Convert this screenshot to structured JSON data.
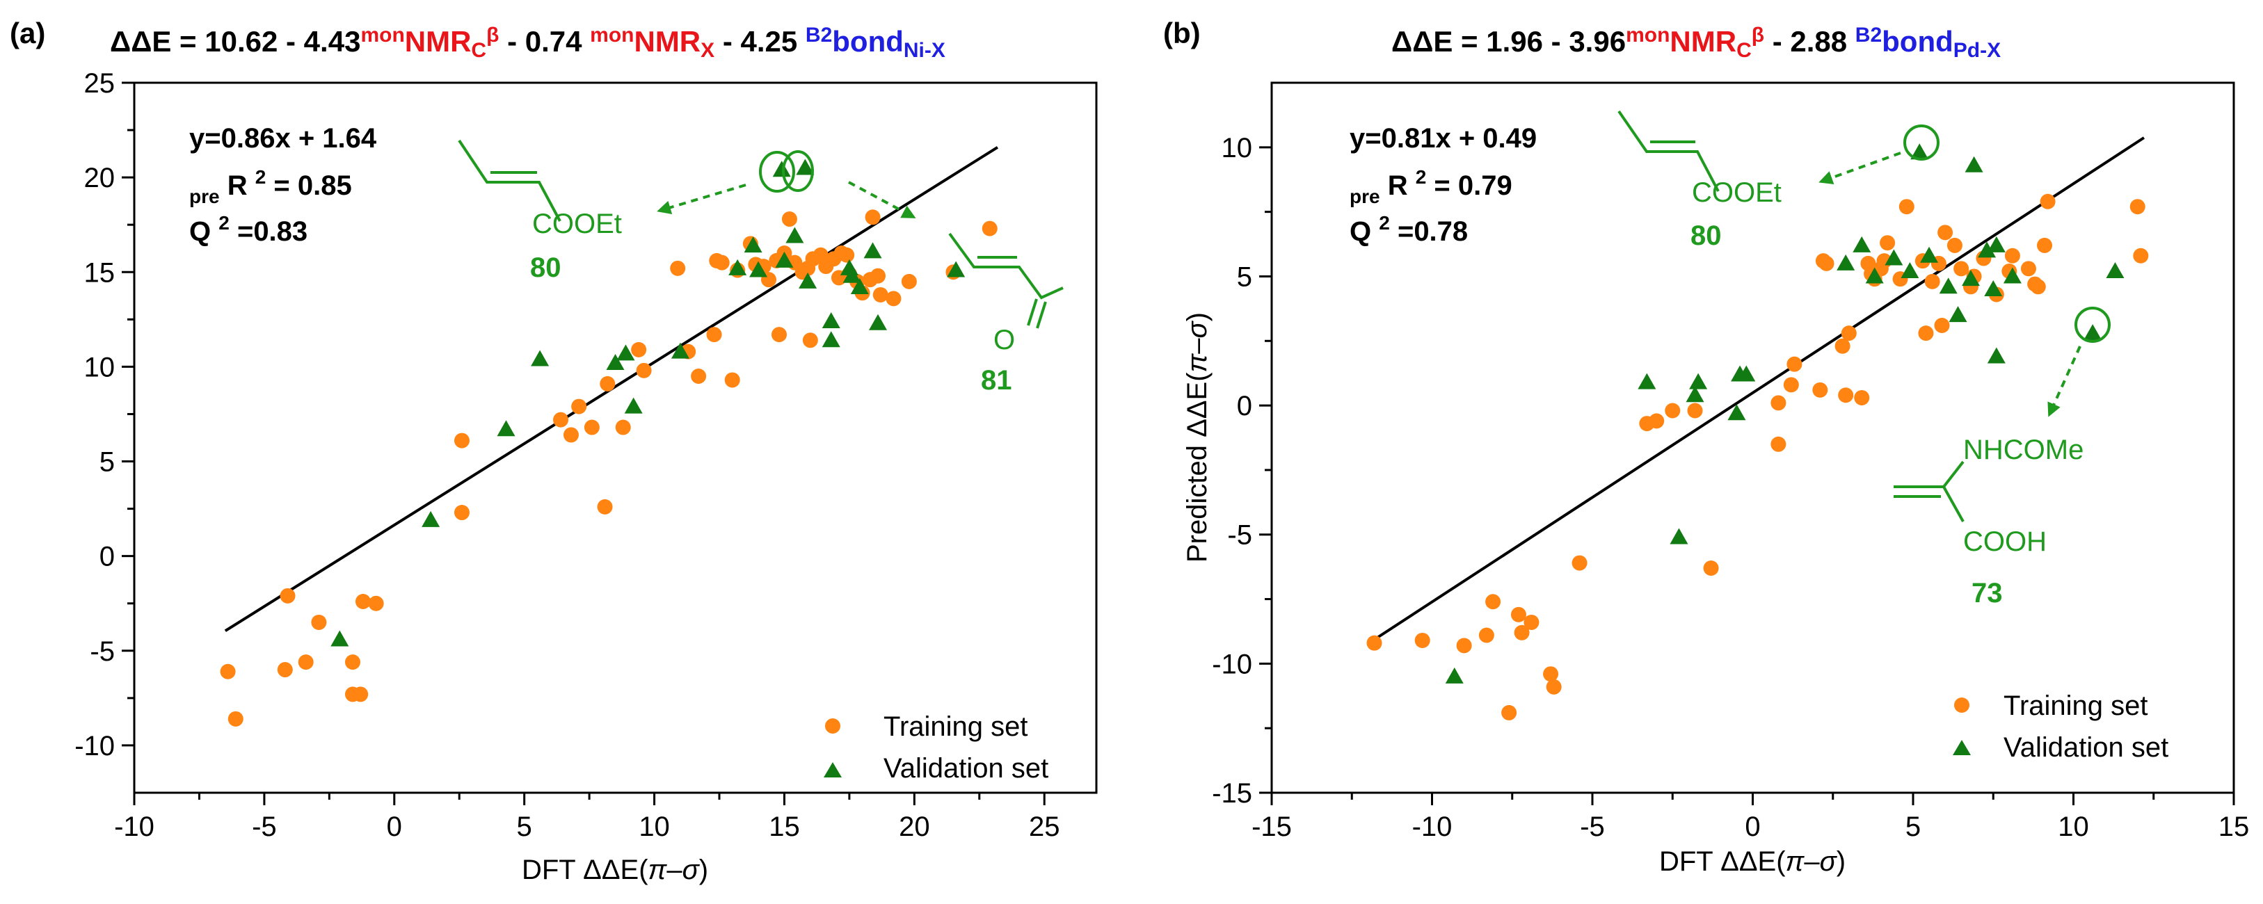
{
  "figure": {
    "panels": [
      {
        "id": "a",
        "label": "(a)",
        "equation": [
          {
            "t": "ΔΔE = 10.62 - 4.43",
            "c": "#000000",
            "k": "n"
          },
          {
            "t": "mon",
            "c": "#e8161b",
            "k": "sup"
          },
          {
            "t": "NMR",
            "c": "#e8161b",
            "k": "n"
          },
          {
            "t": "C",
            "c": "#e8161b",
            "k": "sub"
          },
          {
            "t": "β",
            "c": "#e8161b",
            "k": "sup"
          },
          {
            "t": " - 0.74 ",
            "c": "#000000",
            "k": "n"
          },
          {
            "t": "mon",
            "c": "#e8161b",
            "k": "sup"
          },
          {
            "t": "NMR",
            "c": "#e8161b",
            "k": "n"
          },
          {
            "t": "X",
            "c": "#e8161b",
            "k": "sub"
          },
          {
            "t": " - 4.25 ",
            "c": "#000000",
            "k": "n"
          },
          {
            "t": "B2",
            "c": "#1f1fe0",
            "k": "sup"
          },
          {
            "t": "bond",
            "c": "#1f1fe0",
            "k": "n"
          },
          {
            "t": "Ni-X",
            "c": "#1f1fe0",
            "k": "sub"
          }
        ],
        "fit_line1": "y=0.86x + 1.64",
        "fit_r2_sub": "pre",
        "fit_r2_main": "R",
        "fit_r2_sup": "2",
        "fit_r2_val": " = 0.85",
        "fit_q2_main": "Q",
        "fit_q2_sup": "2",
        "fit_q2_val": "=0.83",
        "annotations": {
          "mol1_text": "COOEt",
          "mol1_num": "80",
          "mol2_o": "O",
          "mol2_num": "81"
        },
        "legend": {
          "training": "Training set",
          "validation": "Validation set"
        }
      },
      {
        "id": "b",
        "label": "(b)",
        "equation": [
          {
            "t": "ΔΔE = 1.96 - 3.96",
            "c": "#000000",
            "k": "n"
          },
          {
            "t": "mon",
            "c": "#e8161b",
            "k": "sup"
          },
          {
            "t": "NMR",
            "c": "#e8161b",
            "k": "n"
          },
          {
            "t": "C",
            "c": "#e8161b",
            "k": "sub"
          },
          {
            "t": "β",
            "c": "#e8161b",
            "k": "sup"
          },
          {
            "t": " - 2.88 ",
            "c": "#000000",
            "k": "n"
          },
          {
            "t": "B2",
            "c": "#1f1fe0",
            "k": "sup"
          },
          {
            "t": "bond",
            "c": "#1f1fe0",
            "k": "n"
          },
          {
            "t": "Pd-X",
            "c": "#1f1fe0",
            "k": "sub"
          }
        ],
        "fit_line1": "y=0.81x + 0.49",
        "fit_r2_sub": "pre",
        "fit_r2_main": "R",
        "fit_r2_sup": "2",
        "fit_r2_val": " = 0.79",
        "fit_q2_main": "Q",
        "fit_q2_sup": "2",
        "fit_q2_val": "=0.78",
        "annotations": {
          "mol1_text": "COOEt",
          "mol1_num": "80",
          "mol3_text1": "NHCOMe",
          "mol3_text2": "COOH",
          "mol3_num": "73"
        },
        "legend": {
          "training": "Training set",
          "validation": "Validation set"
        }
      }
    ]
  },
  "chart_data": [
    {
      "type": "scatter",
      "panel": "a",
      "title": "ΔΔE = 10.62 - 4.43 monNMRCβ - 0.74 monNMRX - 4.25 B2bondNi-X",
      "xlabel_prefix": "DFT ΔΔE(",
      "xlabel_pi": "π",
      "xlabel_dash": "–",
      "xlabel_sigma": "σ",
      "xlabel_suffix": ")",
      "ylabel": "",
      "xlim": [
        -10,
        27
      ],
      "ylim": [
        -12.5,
        25
      ],
      "xticks": [
        -10,
        -5,
        0,
        5,
        10,
        15,
        20,
        25
      ],
      "yticks": [
        -10,
        -5,
        0,
        5,
        10,
        15,
        20,
        25
      ],
      "xtick_labels": [
        "-10",
        "-5",
        "0",
        "5",
        "10",
        "15",
        "20",
        "25"
      ],
      "ytick_labels": [
        "-10",
        "-5",
        "0",
        "5",
        "10",
        "15",
        "20",
        "25"
      ],
      "fit_line": {
        "slope": 0.86,
        "intercept": 1.64,
        "x_range": [
          -6.5,
          23.2
        ]
      },
      "series": [
        {
          "name": "Training set",
          "marker": "circle",
          "color": "#ff8412",
          "points": [
            [
              -6.4,
              -6.1
            ],
            [
              -6.1,
              -8.6
            ],
            [
              -4.2,
              -6.0
            ],
            [
              -4.1,
              -2.1
            ],
            [
              -3.4,
              -5.6
            ],
            [
              -2.9,
              -3.5
            ],
            [
              -1.6,
              -5.6
            ],
            [
              -1.6,
              -7.3
            ],
            [
              -1.3,
              -7.3
            ],
            [
              -1.2,
              -2.4
            ],
            [
              -0.7,
              -2.5
            ],
            [
              2.6,
              6.1
            ],
            [
              2.6,
              2.3
            ],
            [
              6.4,
              7.2
            ],
            [
              6.8,
              6.4
            ],
            [
              7.1,
              7.9
            ],
            [
              7.6,
              6.8
            ],
            [
              8.1,
              2.6
            ],
            [
              8.2,
              9.1
            ],
            [
              8.8,
              6.8
            ],
            [
              9.4,
              10.9
            ],
            [
              9.6,
              9.8
            ],
            [
              10.9,
              15.2
            ],
            [
              11.3,
              10.8
            ],
            [
              11.7,
              9.5
            ],
            [
              12.3,
              11.7
            ],
            [
              12.4,
              15.6
            ],
            [
              12.6,
              15.5
            ],
            [
              13.0,
              9.3
            ],
            [
              13.2,
              15.1
            ],
            [
              13.7,
              16.5
            ],
            [
              13.9,
              15.4
            ],
            [
              14.2,
              15.3
            ],
            [
              14.4,
              14.6
            ],
            [
              14.7,
              15.6
            ],
            [
              14.8,
              11.7
            ],
            [
              15.0,
              16.0
            ],
            [
              15.2,
              17.8
            ],
            [
              15.4,
              15.5
            ],
            [
              15.7,
              15.0
            ],
            [
              15.9,
              15.2
            ],
            [
              16.0,
              11.4
            ],
            [
              16.1,
              15.7
            ],
            [
              16.4,
              15.9
            ],
            [
              16.6,
              15.3
            ],
            [
              16.9,
              15.7
            ],
            [
              17.1,
              14.7
            ],
            [
              17.2,
              16.0
            ],
            [
              17.4,
              15.9
            ],
            [
              17.5,
              14.9
            ],
            [
              17.8,
              14.5
            ],
            [
              18.0,
              13.9
            ],
            [
              18.3,
              14.6
            ],
            [
              18.4,
              17.9
            ],
            [
              18.6,
              14.8
            ],
            [
              18.7,
              13.8
            ],
            [
              19.2,
              13.6
            ],
            [
              19.8,
              14.5
            ],
            [
              21.5,
              15.0
            ],
            [
              22.9,
              17.3
            ]
          ]
        },
        {
          "name": "Validation set",
          "marker": "triangle",
          "color": "#127a12",
          "points": [
            [
              -2.1,
              -4.4
            ],
            [
              1.4,
              1.9
            ],
            [
              4.3,
              6.7
            ],
            [
              5.6,
              10.4
            ],
            [
              8.5,
              10.2
            ],
            [
              8.9,
              10.7
            ],
            [
              9.2,
              7.9
            ],
            [
              11.0,
              10.8
            ],
            [
              13.2,
              15.2
            ],
            [
              13.8,
              16.4
            ],
            [
              14.0,
              15.1
            ],
            [
              14.9,
              20.4
            ],
            [
              15.0,
              15.6
            ],
            [
              15.4,
              16.9
            ],
            [
              15.8,
              20.5
            ],
            [
              15.9,
              14.5
            ],
            [
              16.8,
              12.4
            ],
            [
              16.8,
              11.4
            ],
            [
              17.5,
              15.2
            ],
            [
              17.6,
              14.8
            ],
            [
              17.9,
              14.2
            ],
            [
              18.4,
              16.1
            ],
            [
              18.6,
              12.3
            ],
            [
              21.6,
              15.1
            ]
          ]
        }
      ]
    },
    {
      "type": "scatter",
      "panel": "b",
      "title": "ΔΔE = 1.96 - 3.96 monNMRCβ - 2.88 B2bondPd-X",
      "xlabel_prefix": "DFT ΔΔE(",
      "xlabel_pi": "π",
      "xlabel_dash": "–",
      "xlabel_sigma": "σ",
      "xlabel_suffix": ")",
      "ylabel_prefix": "Predicted ΔΔE(",
      "ylabel_pi": "π",
      "ylabel_dash": "–",
      "ylabel_sigma": "σ",
      "ylabel_suffix": ")",
      "xlim": [
        -15,
        15
      ],
      "ylim": [
        -15,
        12.5
      ],
      "xticks": [
        -15,
        -10,
        -5,
        0,
        5,
        10,
        15
      ],
      "yticks": [
        -15,
        -10,
        -5,
        0,
        5,
        10
      ],
      "xtick_labels": [
        "-15",
        "-10",
        "-5",
        "0",
        "5",
        "10",
        "15"
      ],
      "ytick_labels": [
        "-15",
        "-10",
        "-5",
        "0",
        "5",
        "10"
      ],
      "fit_line": {
        "slope": 0.81,
        "intercept": 0.49,
        "x_range": [
          -11.8,
          12.2
        ]
      },
      "series": [
        {
          "name": "Training set",
          "marker": "circle",
          "color": "#ff8412",
          "points": [
            [
              -11.8,
              -9.2
            ],
            [
              -10.3,
              -9.1
            ],
            [
              -9.0,
              -9.3
            ],
            [
              -8.3,
              -8.9
            ],
            [
              -8.1,
              -7.6
            ],
            [
              -7.6,
              -11.9
            ],
            [
              -7.3,
              -8.1
            ],
            [
              -7.2,
              -8.8
            ],
            [
              -6.9,
              -8.4
            ],
            [
              -6.3,
              -10.4
            ],
            [
              -6.2,
              -10.9
            ],
            [
              -5.4,
              -6.1
            ],
            [
              -3.3,
              -0.7
            ],
            [
              -3.0,
              -0.6
            ],
            [
              -2.5,
              -0.2
            ],
            [
              -1.8,
              -0.2
            ],
            [
              -1.3,
              -6.3
            ],
            [
              0.8,
              0.1
            ],
            [
              0.8,
              -1.5
            ],
            [
              1.2,
              0.8
            ],
            [
              1.3,
              1.6
            ],
            [
              2.1,
              0.6
            ],
            [
              2.2,
              5.6
            ],
            [
              2.3,
              5.5
            ],
            [
              2.8,
              2.3
            ],
            [
              2.9,
              0.4
            ],
            [
              3.0,
              2.8
            ],
            [
              3.4,
              0.3
            ],
            [
              3.6,
              5.5
            ],
            [
              3.7,
              5.1
            ],
            [
              3.8,
              4.9
            ],
            [
              4.0,
              5.3
            ],
            [
              4.1,
              5.6
            ],
            [
              4.2,
              6.3
            ],
            [
              4.6,
              4.9
            ],
            [
              4.8,
              7.7
            ],
            [
              5.3,
              5.6
            ],
            [
              5.4,
              2.8
            ],
            [
              5.6,
              4.8
            ],
            [
              5.8,
              5.5
            ],
            [
              5.9,
              3.1
            ],
            [
              6.0,
              6.7
            ],
            [
              6.3,
              6.2
            ],
            [
              6.5,
              5.3
            ],
            [
              6.8,
              4.6
            ],
            [
              6.9,
              5.0
            ],
            [
              7.2,
              5.7
            ],
            [
              7.6,
              4.3
            ],
            [
              8.0,
              5.2
            ],
            [
              8.1,
              5.8
            ],
            [
              8.6,
              5.3
            ],
            [
              8.8,
              4.7
            ],
            [
              8.9,
              4.6
            ],
            [
              9.1,
              6.2
            ],
            [
              9.2,
              7.9
            ],
            [
              12.0,
              7.7
            ],
            [
              12.1,
              5.8
            ]
          ]
        },
        {
          "name": "Validation set",
          "marker": "triangle",
          "color": "#127a12",
          "points": [
            [
              -9.3,
              -10.5
            ],
            [
              -3.3,
              0.9
            ],
            [
              -2.3,
              -5.1
            ],
            [
              -1.8,
              0.4
            ],
            [
              -1.7,
              0.9
            ],
            [
              -0.5,
              -0.3
            ],
            [
              -0.4,
              1.2
            ],
            [
              -0.2,
              1.2
            ],
            [
              2.9,
              5.5
            ],
            [
              3.4,
              6.2
            ],
            [
              3.8,
              5.0
            ],
            [
              4.4,
              5.7
            ],
            [
              4.9,
              5.2
            ],
            [
              5.2,
              9.8
            ],
            [
              5.5,
              5.8
            ],
            [
              6.1,
              4.6
            ],
            [
              6.4,
              3.5
            ],
            [
              6.8,
              4.9
            ],
            [
              6.9,
              9.3
            ],
            [
              7.3,
              6.0
            ],
            [
              7.5,
              4.5
            ],
            [
              7.6,
              6.2
            ],
            [
              7.6,
              1.9
            ],
            [
              8.1,
              5.0
            ],
            [
              10.6,
              2.8
            ],
            [
              11.3,
              5.2
            ]
          ]
        }
      ]
    }
  ]
}
